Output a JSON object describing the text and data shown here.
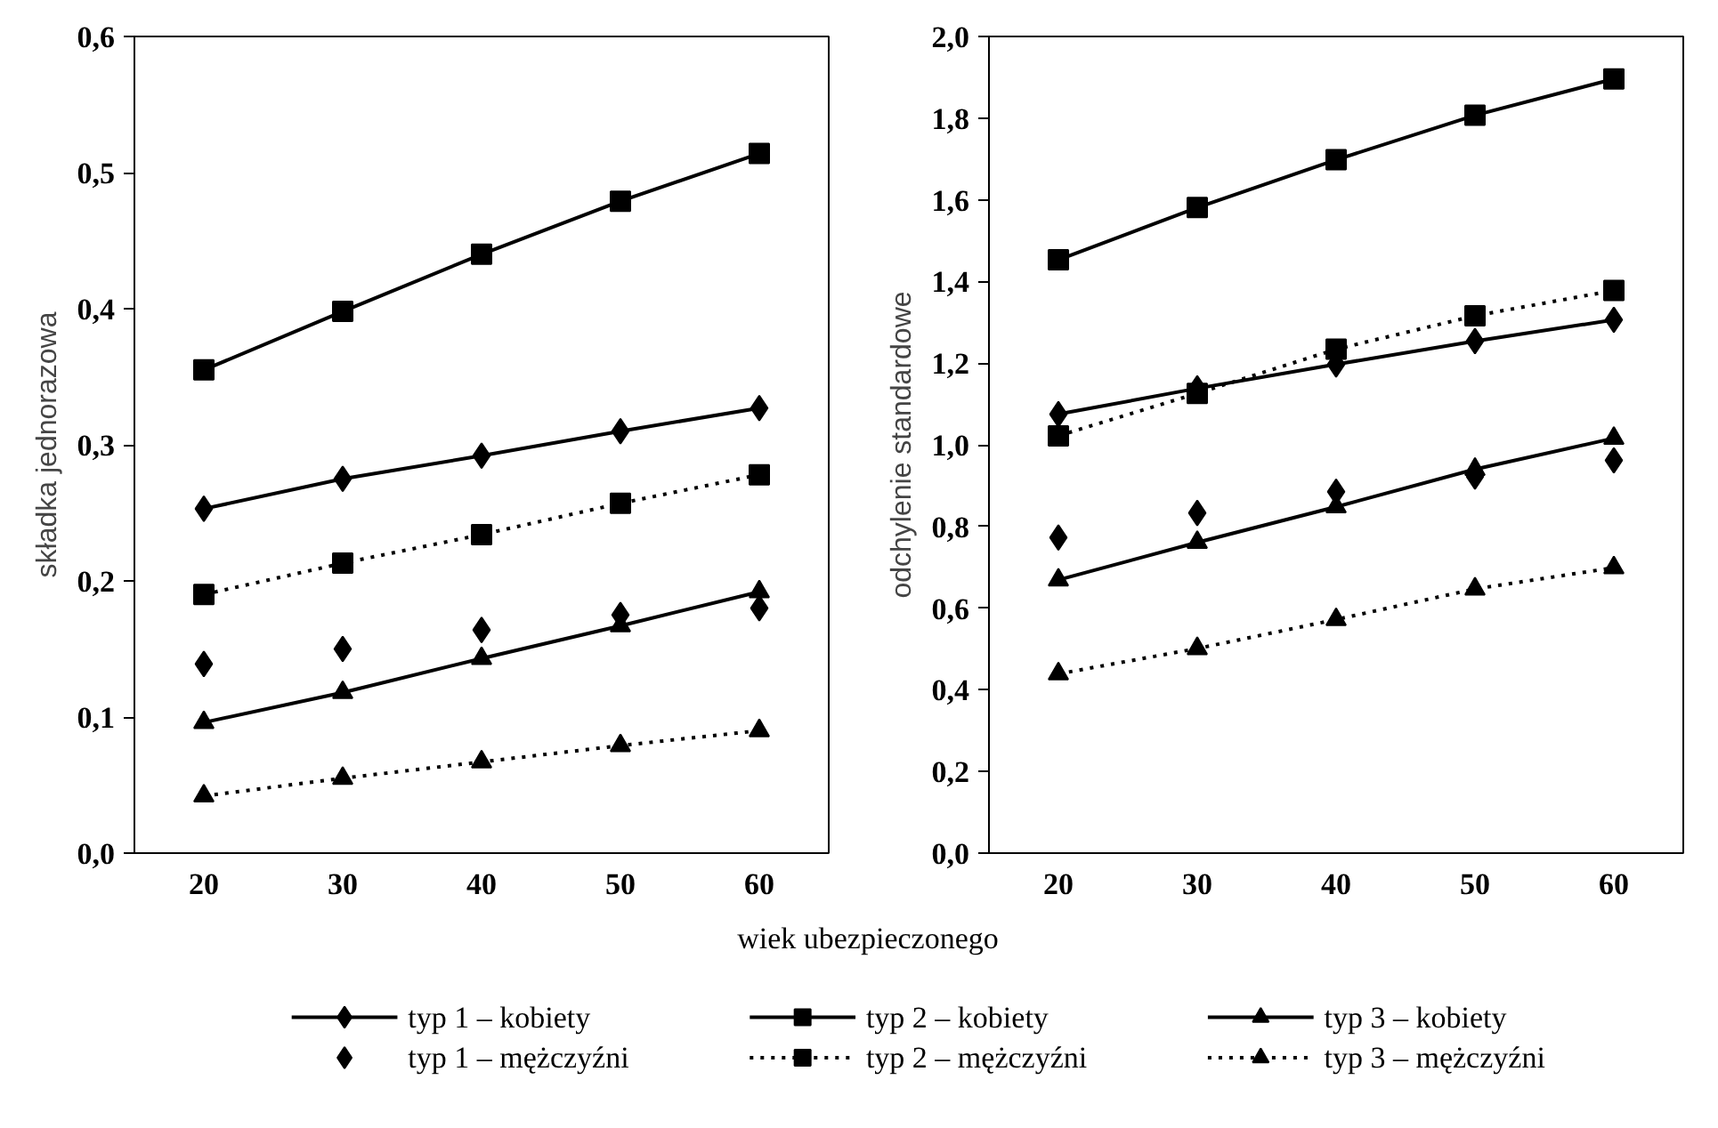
{
  "chart_data": [
    {
      "type": "line",
      "xlabel": "wiek ubezpieczonego",
      "ylabel": "składka jednorazowa",
      "x": [
        20,
        30,
        40,
        50,
        60
      ],
      "xlim": [
        15,
        65
      ],
      "xticks": [
        20,
        30,
        40,
        50,
        60
      ],
      "ylim": [
        0,
        0.6
      ],
      "yticks": [
        {
          "value": 0,
          "label": "0,0"
        },
        {
          "value": 0.1,
          "label": "0,1"
        },
        {
          "value": 0.2,
          "label": "0,2"
        },
        {
          "value": 0.3,
          "label": "0,3"
        },
        {
          "value": 0.4,
          "label": "0,4"
        },
        {
          "value": 0.5,
          "label": "0,5"
        },
        {
          "value": 0.6,
          "label": "0,6"
        }
      ],
      "grid": false,
      "legend": "bottom",
      "series": [
        {
          "name": "typ 1 – kobiety",
          "color": "#000000",
          "marker": "diamond",
          "line_style": "solid",
          "values": [
            0.253,
            0.275,
            0.292,
            0.31,
            0.327
          ]
        },
        {
          "name": "typ 2 – kobiety",
          "color": "#000000",
          "marker": "square",
          "line_style": "solid",
          "values": [
            0.355,
            0.398,
            0.44,
            0.479,
            0.514
          ]
        },
        {
          "name": "typ 3 – kobiety",
          "color": "#000000",
          "marker": "triangle",
          "line_style": "solid",
          "values": [
            0.096,
            0.118,
            0.143,
            0.167,
            0.192
          ]
        },
        {
          "name": "typ 1 – mężczyźni",
          "type": "scatter",
          "color": "#000000",
          "marker": "diamond",
          "values": [
            0.139,
            0.15,
            0.164,
            0.175,
            0.18
          ]
        },
        {
          "name": "typ 2 – mężczyźni",
          "color": "#000000",
          "marker": "square",
          "line_style": "dotted",
          "values": [
            0.19,
            0.213,
            0.234,
            0.257,
            0.278
          ]
        },
        {
          "name": "typ 3 – mężczyźni",
          "color": "#000000",
          "marker": "triangle",
          "line_style": "dotted",
          "values": [
            0.042,
            0.055,
            0.067,
            0.079,
            0.09
          ]
        }
      ]
    },
    {
      "type": "line",
      "ylabel": "odchylenie standardowe",
      "x": [
        20,
        30,
        40,
        50,
        60
      ],
      "xlim": [
        15,
        65
      ],
      "xticks": [
        20,
        30,
        40,
        50,
        60
      ],
      "ylim": [
        0,
        2
      ],
      "yticks": [
        {
          "value": 0,
          "label": "0,0"
        },
        {
          "value": 0.2,
          "label": "0,2"
        },
        {
          "value": 0.4,
          "label": "0,4"
        },
        {
          "value": 0.6,
          "label": "0,6"
        },
        {
          "value": 0.8,
          "label": "0,8"
        },
        {
          "value": 1,
          "label": "1,0"
        },
        {
          "value": 1.2,
          "label": "1,2"
        },
        {
          "value": 1.4,
          "label": "1,4"
        },
        {
          "value": 1.6,
          "label": "1,6"
        },
        {
          "value": 1.8,
          "label": "1,8"
        },
        {
          "value": 2,
          "label": "2,0"
        }
      ],
      "grid": false,
      "series": [
        {
          "color": "#000000",
          "marker": "diamond",
          "line_style": "solid",
          "values": [
            1.075,
            1.138,
            1.197,
            1.254,
            1.306
          ]
        },
        {
          "color": "#000000",
          "marker": "square",
          "line_style": "solid",
          "values": [
            1.453,
            1.581,
            1.698,
            1.807,
            1.896
          ]
        },
        {
          "color": "#000000",
          "marker": "triangle",
          "line_style": "solid",
          "values": [
            0.669,
            0.761,
            0.848,
            0.94,
            1.016
          ]
        },
        {
          "type": "scatter",
          "color": "#000000",
          "marker": "diamond",
          "values": [
            0.773,
            0.833,
            0.885,
            0.922,
            0.962
          ]
        },
        {
          "color": "#000000",
          "marker": "square",
          "line_style": "dotted",
          "values": [
            1.022,
            1.126,
            1.234,
            1.316,
            1.378
          ]
        },
        {
          "color": "#000000",
          "marker": "triangle",
          "line_style": "dotted",
          "values": [
            0.439,
            0.501,
            0.572,
            0.647,
            0.699
          ]
        }
      ]
    }
  ]
}
